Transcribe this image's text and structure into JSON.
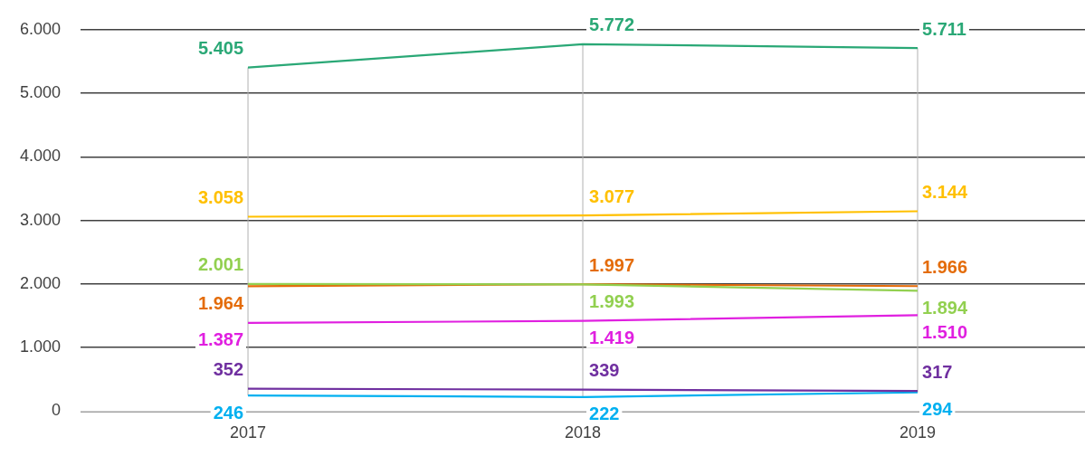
{
  "chart_data": {
    "type": "line",
    "categories": [
      "2017",
      "2018",
      "2019"
    ],
    "ylim": [
      0,
      6000
    ],
    "yticks": [
      {
        "value": 0,
        "label": "0"
      },
      {
        "value": 1000,
        "label": "1.000"
      },
      {
        "value": 2000,
        "label": "2.000"
      },
      {
        "value": 3000,
        "label": "3.000"
      },
      {
        "value": 4000,
        "label": "4.000"
      },
      {
        "value": 5000,
        "label": "5.000"
      },
      {
        "value": 6000,
        "label": "6.000"
      }
    ],
    "grid": true,
    "legend": false,
    "marker": "none",
    "line_style": "solid",
    "series": [
      {
        "color": "#2aa876",
        "values": [
          5405,
          5772,
          5711
        ],
        "value_labels": [
          "5.405",
          "5.772",
          "5.711"
        ]
      },
      {
        "color": "#ffc000",
        "values": [
          3058,
          3077,
          3144
        ],
        "value_labels": [
          "3.058",
          "3.077",
          "3.144"
        ]
      },
      {
        "color": "#92d050",
        "values": [
          2001,
          1993,
          1894
        ],
        "value_labels": [
          "2.001",
          "1.993",
          "1.894"
        ]
      },
      {
        "color": "#e46c0a",
        "values": [
          1964,
          1997,
          1966
        ],
        "value_labels": [
          "1.964",
          "1.997",
          "1.966"
        ]
      },
      {
        "color": "#e020e0",
        "values": [
          1387,
          1419,
          1510
        ],
        "value_labels": [
          "1.387",
          "1.419",
          "1.510"
        ]
      },
      {
        "color": "#7030a0",
        "values": [
          352,
          339,
          317
        ],
        "value_labels": [
          "352",
          "339",
          "317"
        ]
      },
      {
        "color": "#00b0f0",
        "values": [
          246,
          222,
          294
        ],
        "value_labels": [
          "246",
          "222",
          "294"
        ]
      }
    ]
  }
}
